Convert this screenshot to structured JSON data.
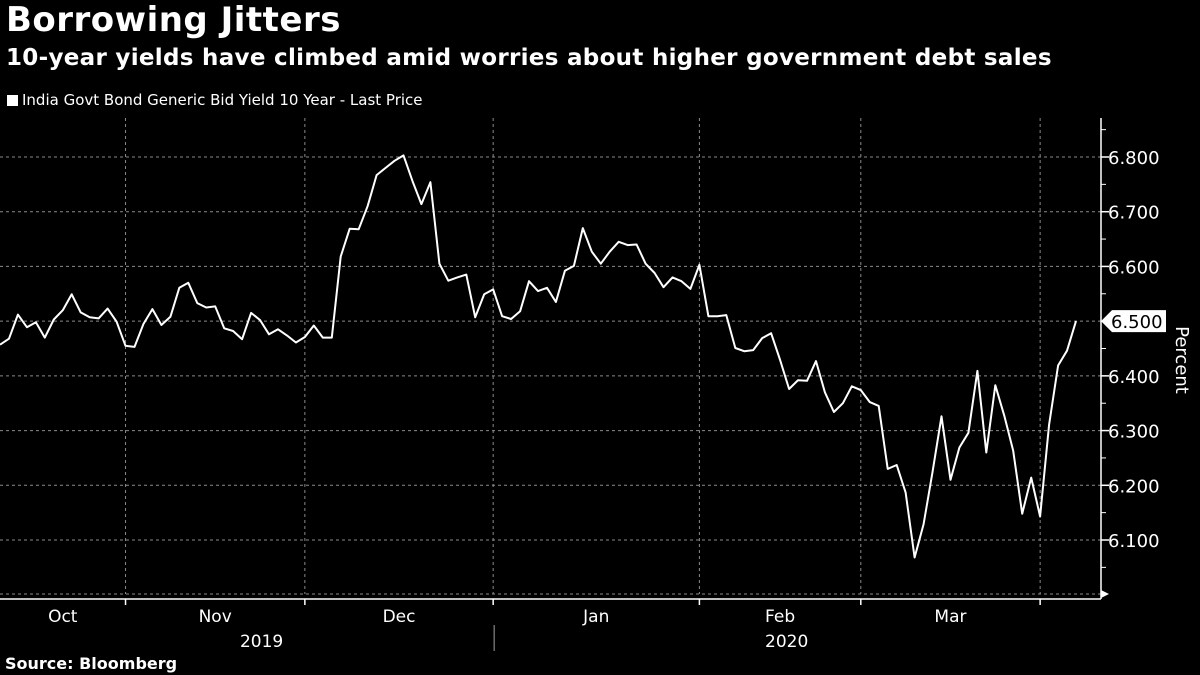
{
  "title": "Borrowing Jitters",
  "subtitle": "10-year yields have climbed amid worries about higher government debt sales",
  "source": "Source: Bloomberg",
  "colors": {
    "background": "#000000",
    "line": "#ffffff",
    "grid": "#8a8a8a"
  },
  "chart_data": {
    "type": "line",
    "title": "Borrowing Jitters",
    "subtitle": "10-year yields have climbed amid worries about higher government debt sales",
    "legend": [
      "India Govt Bond Generic Bid Yield 10 Year - Last Price"
    ],
    "legend_position": "top-left",
    "ylabel": "Percent",
    "xlabel": "",
    "ylim": [
      5.995,
      6.86
    ],
    "y_ticks": [
      "6.100",
      "6.200",
      "6.300",
      "6.400",
      "6.500",
      "6.600",
      "6.700",
      "6.800"
    ],
    "y_tick_values": [
      6.1,
      6.2,
      6.3,
      6.4,
      6.5,
      6.6,
      6.7,
      6.8
    ],
    "last_value_label": "6.500",
    "last_value": 6.5,
    "x_month_labels": [
      "Oct",
      "Nov",
      "Dec",
      "Jan",
      "Feb",
      "Mar"
    ],
    "x_year_labels": [
      "2019",
      "2020"
    ],
    "grid": true,
    "x_index_range": [
      0,
      122
    ],
    "month_boundaries_index": [
      14,
      34,
      55,
      78,
      96,
      116
    ],
    "series": [
      {
        "name": "India Govt Bond Generic Bid Yield 10 Year - Last Price",
        "values": [
          6.457,
          6.468,
          6.512,
          6.489,
          6.498,
          6.47,
          6.503,
          6.52,
          6.549,
          6.516,
          6.507,
          6.505,
          6.523,
          6.499,
          6.455,
          6.453,
          6.495,
          6.522,
          6.493,
          6.508,
          6.561,
          6.57,
          6.533,
          6.525,
          6.527,
          6.487,
          6.482,
          6.467,
          6.515,
          6.502,
          6.476,
          6.485,
          6.474,
          6.461,
          6.471,
          6.492,
          6.47,
          6.47,
          6.618,
          6.669,
          6.668,
          6.71,
          6.767,
          6.78,
          6.793,
          6.803,
          6.756,
          6.714,
          6.754,
          6.605,
          6.574,
          6.58,
          6.585,
          6.507,
          6.549,
          6.558,
          6.509,
          6.504,
          6.518,
          6.573,
          6.555,
          6.561,
          6.535,
          6.592,
          6.601,
          6.67,
          6.627,
          6.605,
          6.627,
          6.645,
          6.639,
          6.64,
          6.605,
          6.588,
          6.562,
          6.58,
          6.573,
          6.559,
          6.603,
          6.509,
          6.509,
          6.511,
          6.451,
          6.445,
          6.447,
          6.469,
          6.478,
          6.429,
          6.376,
          6.392,
          6.391,
          6.427,
          6.37,
          6.334,
          6.35,
          6.381,
          6.374,
          6.352,
          6.345,
          6.23,
          6.237,
          6.187,
          6.068,
          6.129,
          6.224,
          6.326,
          6.21,
          6.269,
          6.296,
          6.409,
          6.26,
          6.383,
          6.327,
          6.263,
          6.148,
          6.214,
          6.143,
          6.311,
          6.419,
          6.446,
          6.5
        ]
      }
    ]
  }
}
